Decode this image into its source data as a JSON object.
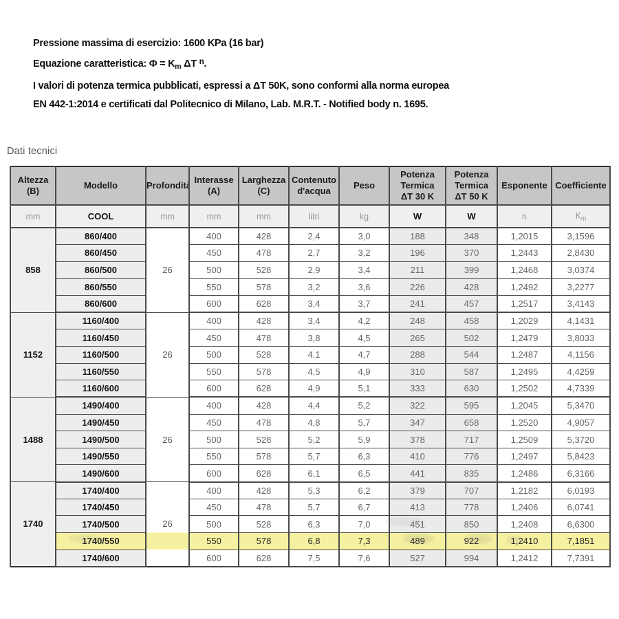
{
  "intro": {
    "line1": "Pressione massima di esercizio: 1600 KPa (16 bar)",
    "equation": {
      "prefix": "Equazione caratteristica: Φ = K",
      "sub": "m",
      "mid": " ΔT ",
      "sup": "n",
      "suffix": "."
    },
    "line3": "I valori di potenza termica pubblicati, espressi a ΔT 50K, sono conformi alla norma europea",
    "line4": "EN 442-1:2014 e certificati dal Politecnico di Milano, Lab. M.R.T. - Notified body n. 1695."
  },
  "section_title": "Dati tecnici",
  "table": {
    "headers": [
      "Altezza\n(B)",
      "Modello",
      "Profondità",
      "Interasse\n(A)",
      "Larghezza\n(C)",
      "Contenuto\nd'acqua",
      "Peso",
      "Potenza\nTermica\nΔT 30 K",
      "Potenza\nTermica\nΔT 50 K",
      "Esponente",
      "Coefficiente"
    ],
    "units": [
      {
        "text": "mm"
      },
      {
        "text": "COOL",
        "strong": true
      },
      {
        "text": "mm"
      },
      {
        "text": "mm"
      },
      {
        "text": "mm"
      },
      {
        "text": "litri"
      },
      {
        "text": "kg"
      },
      {
        "text": "W",
        "strong": true
      },
      {
        "text": "W",
        "strong": true
      },
      {
        "text": "n"
      },
      {
        "text": "K",
        "sub": "m"
      }
    ],
    "highlight_color": "#f6f1a0",
    "groups": [
      {
        "altezza": "858",
        "profondita": "26",
        "rows": [
          {
            "modello": "860/400",
            "interasse": "400",
            "larghezza": "428",
            "contenuto": "2,4",
            "peso": "3,0",
            "dt30": "188",
            "dt50": "348",
            "esponente": "1,2015",
            "coefficiente": "3,1596"
          },
          {
            "modello": "860/450",
            "interasse": "450",
            "larghezza": "478",
            "contenuto": "2,7",
            "peso": "3,2",
            "dt30": "196",
            "dt50": "370",
            "esponente": "1,2443",
            "coefficiente": "2,8430"
          },
          {
            "modello": "860/500",
            "interasse": "500",
            "larghezza": "528",
            "contenuto": "2,9",
            "peso": "3,4",
            "dt30": "211",
            "dt50": "399",
            "esponente": "1,2468",
            "coefficiente": "3,0374"
          },
          {
            "modello": "860/550",
            "interasse": "550",
            "larghezza": "578",
            "contenuto": "3,2",
            "peso": "3,6",
            "dt30": "226",
            "dt50": "428",
            "esponente": "1,2492",
            "coefficiente": "3,2277"
          },
          {
            "modello": "860/600",
            "interasse": "600",
            "larghezza": "628",
            "contenuto": "3,4",
            "peso": "3,7",
            "dt30": "241",
            "dt50": "457",
            "esponente": "1,2517",
            "coefficiente": "3,4143"
          }
        ]
      },
      {
        "altezza": "1152",
        "profondita": "26",
        "rows": [
          {
            "modello": "1160/400",
            "interasse": "400",
            "larghezza": "428",
            "contenuto": "3,4",
            "peso": "4,2",
            "dt30": "248",
            "dt50": "458",
            "esponente": "1,2029",
            "coefficiente": "4,1431"
          },
          {
            "modello": "1160/450",
            "interasse": "450",
            "larghezza": "478",
            "contenuto": "3,8",
            "peso": "4,5",
            "dt30": "265",
            "dt50": "502",
            "esponente": "1,2479",
            "coefficiente": "3,8033"
          },
          {
            "modello": "1160/500",
            "interasse": "500",
            "larghezza": "528",
            "contenuto": "4,1",
            "peso": "4,7",
            "dt30": "288",
            "dt50": "544",
            "esponente": "1,2487",
            "coefficiente": "4,1156"
          },
          {
            "modello": "1160/550",
            "interasse": "550",
            "larghezza": "578",
            "contenuto": "4,5",
            "peso": "4,9",
            "dt30": "310",
            "dt50": "587",
            "esponente": "1,2495",
            "coefficiente": "4,4259"
          },
          {
            "modello": "1160/600",
            "interasse": "600",
            "larghezza": "628",
            "contenuto": "4,9",
            "peso": "5,1",
            "dt30": "333",
            "dt50": "630",
            "esponente": "1,2502",
            "coefficiente": "4,7339"
          }
        ]
      },
      {
        "altezza": "1488",
        "profondita": "26",
        "rows": [
          {
            "modello": "1490/400",
            "interasse": "400",
            "larghezza": "428",
            "contenuto": "4,4",
            "peso": "5,2",
            "dt30": "322",
            "dt50": "595",
            "esponente": "1,2045",
            "coefficiente": "5,3470"
          },
          {
            "modello": "1490/450",
            "interasse": "450",
            "larghezza": "478",
            "contenuto": "4,8",
            "peso": "5,7",
            "dt30": "347",
            "dt50": "658",
            "esponente": "1,2520",
            "coefficiente": "4,9057"
          },
          {
            "modello": "1490/500",
            "interasse": "500",
            "larghezza": "528",
            "contenuto": "5,2",
            "peso": "5,9",
            "dt30": "378",
            "dt50": "717",
            "esponente": "1,2509",
            "coefficiente": "5,3720"
          },
          {
            "modello": "1490/550",
            "interasse": "550",
            "larghezza": "578",
            "contenuto": "5,7",
            "peso": "6,3",
            "dt30": "410",
            "dt50": "776",
            "esponente": "1,2497",
            "coefficiente": "5,8423"
          },
          {
            "modello": "1490/600",
            "interasse": "600",
            "larghezza": "628",
            "contenuto": "6,1",
            "peso": "6,5",
            "dt30": "441",
            "dt50": "835",
            "esponente": "1,2486",
            "coefficiente": "6,3166"
          }
        ]
      },
      {
        "altezza": "1740",
        "profondita": "26",
        "highlight_row": 3,
        "rows": [
          {
            "modello": "1740/400",
            "interasse": "400",
            "larghezza": "428",
            "contenuto": "5,3",
            "peso": "6,2",
            "dt30": "379",
            "dt50": "707",
            "esponente": "1,2182",
            "coefficiente": "6,0193"
          },
          {
            "modello": "1740/450",
            "interasse": "450",
            "larghezza": "478",
            "contenuto": "5,7",
            "peso": "6,7",
            "dt30": "413",
            "dt50": "778",
            "esponente": "1,2406",
            "coefficiente": "6,0741"
          },
          {
            "modello": "1740/500",
            "interasse": "500",
            "larghezza": "528",
            "contenuto": "6,3",
            "peso": "7,0",
            "dt30": "451",
            "dt50": "850",
            "esponente": "1,2408",
            "coefficiente": "6,6300"
          },
          {
            "modello": "1740/550",
            "interasse": "550",
            "larghezza": "578",
            "contenuto": "6,8",
            "peso": "7,3",
            "dt30": "489",
            "dt50": "922",
            "esponente": "1,2410",
            "coefficiente": "7,1851"
          },
          {
            "modello": "1740/600",
            "interasse": "600",
            "larghezza": "628",
            "contenuto": "7,5",
            "peso": "7,6",
            "dt30": "527",
            "dt50": "994",
            "esponente": "1,2412",
            "coefficiente": "7,7391"
          }
        ]
      }
    ]
  }
}
